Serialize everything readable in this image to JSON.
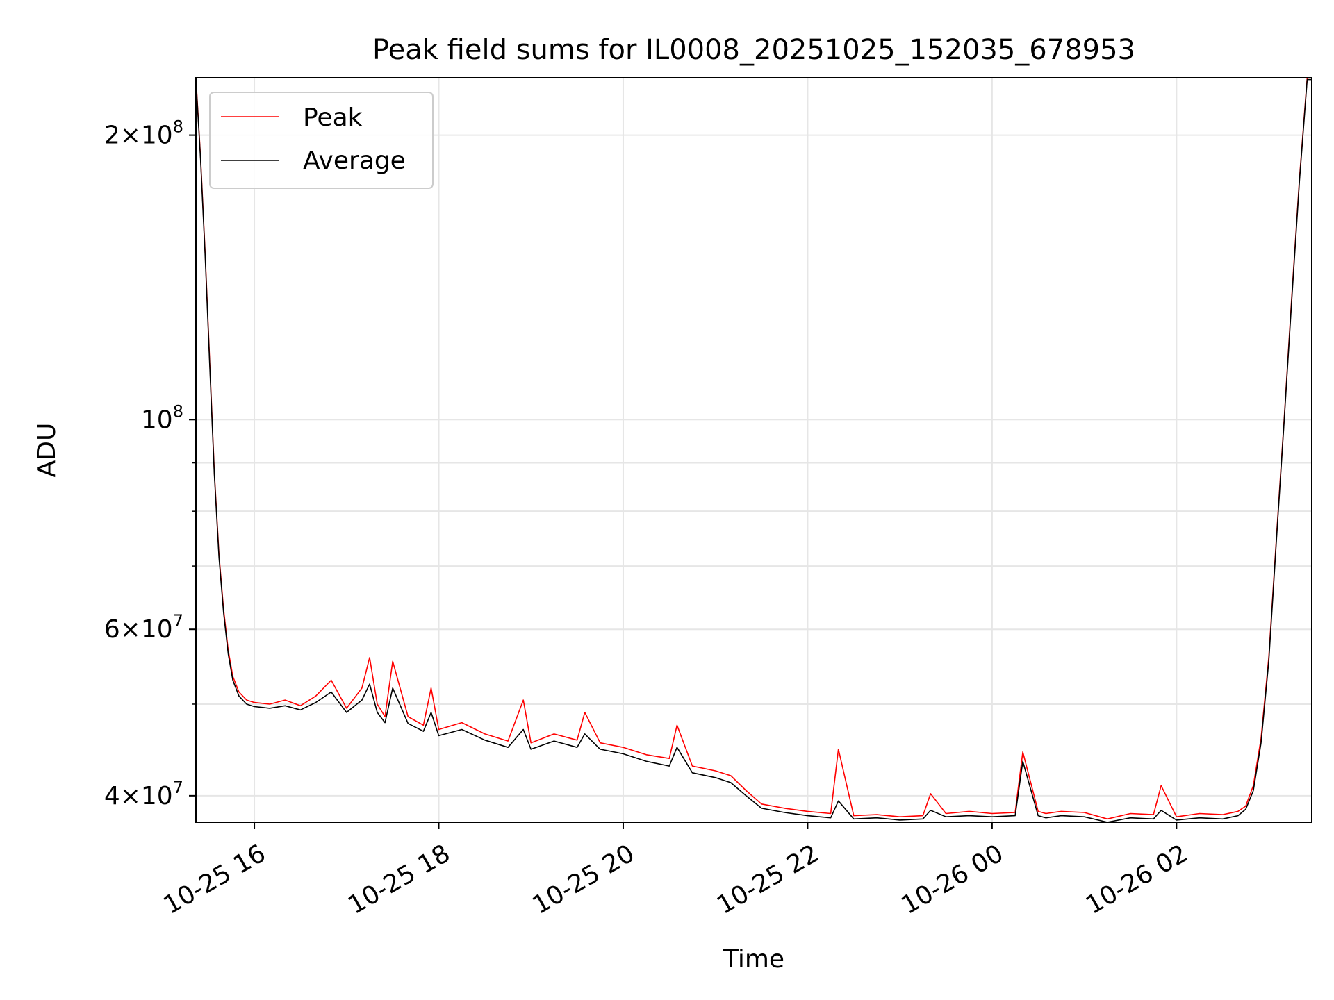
{
  "chart_data": {
    "type": "line",
    "title": "Peak field sums for IL0008_20251025_152035_678953",
    "xlabel": "Time",
    "ylabel": "ADU",
    "y_scale": "log",
    "ylim": [
      37500000,
      230000000
    ],
    "xlim": [
      "2025-10-25 15:22",
      "2025-10-26 03:28"
    ],
    "grid": true,
    "legend_position": "upper-left",
    "x_ticks": [
      {
        "value": "2025-10-25 16:00",
        "label": "10-25 16"
      },
      {
        "value": "2025-10-25 18:00",
        "label": "10-25 18"
      },
      {
        "value": "2025-10-25 20:00",
        "label": "10-25 20"
      },
      {
        "value": "2025-10-25 22:00",
        "label": "10-25 22"
      },
      {
        "value": "2025-10-26 00:00",
        "label": "10-26 00"
      },
      {
        "value": "2025-10-26 02:00",
        "label": "10-26 02"
      }
    ],
    "y_ticks": [
      {
        "value": 40000000,
        "base": "4×10",
        "exp": "7"
      },
      {
        "value": 60000000,
        "base": "6×10",
        "exp": "7"
      },
      {
        "value": 100000000,
        "base": "10",
        "exp": "8"
      },
      {
        "value": 200000000,
        "base": "2×10",
        "exp": "8"
      }
    ],
    "y_minor_ticks": [
      50000000,
      70000000,
      80000000,
      90000000
    ],
    "series": [
      {
        "name": "Peak",
        "color": "#ff0000",
        "x": [
          "2025-10-25 15:22",
          "2025-10-25 15:25",
          "2025-10-25 15:28",
          "2025-10-25 15:31",
          "2025-10-25 15:34",
          "2025-10-25 15:37",
          "2025-10-25 15:40",
          "2025-10-25 15:43",
          "2025-10-25 15:46",
          "2025-10-25 15:50",
          "2025-10-25 15:55",
          "2025-10-25 16:00",
          "2025-10-25 16:10",
          "2025-10-25 16:20",
          "2025-10-25 16:30",
          "2025-10-25 16:40",
          "2025-10-25 16:50",
          "2025-10-25 17:00",
          "2025-10-25 17:10",
          "2025-10-25 17:15",
          "2025-10-25 17:20",
          "2025-10-25 17:25",
          "2025-10-25 17:30",
          "2025-10-25 17:40",
          "2025-10-25 17:50",
          "2025-10-25 17:55",
          "2025-10-25 18:00",
          "2025-10-25 18:15",
          "2025-10-25 18:30",
          "2025-10-25 18:45",
          "2025-10-25 18:55",
          "2025-10-25 19:00",
          "2025-10-25 19:15",
          "2025-10-25 19:30",
          "2025-10-25 19:35",
          "2025-10-25 19:45",
          "2025-10-25 20:00",
          "2025-10-25 20:15",
          "2025-10-25 20:30",
          "2025-10-25 20:35",
          "2025-10-25 20:45",
          "2025-10-25 21:00",
          "2025-10-25 21:10",
          "2025-10-25 21:20",
          "2025-10-25 21:30",
          "2025-10-25 21:45",
          "2025-10-25 22:00",
          "2025-10-25 22:15",
          "2025-10-25 22:20",
          "2025-10-25 22:30",
          "2025-10-25 22:45",
          "2025-10-25 23:00",
          "2025-10-25 23:15",
          "2025-10-25 23:20",
          "2025-10-25 23:30",
          "2025-10-25 23:45",
          "2025-10-26 00:00",
          "2025-10-26 00:15",
          "2025-10-26 00:20",
          "2025-10-26 00:30",
          "2025-10-26 00:35",
          "2025-10-26 00:45",
          "2025-10-26 01:00",
          "2025-10-26 01:15",
          "2025-10-26 01:30",
          "2025-10-26 01:45",
          "2025-10-26 01:50",
          "2025-10-26 02:00",
          "2025-10-26 02:15",
          "2025-10-26 02:30",
          "2025-10-26 02:40",
          "2025-10-26 02:45",
          "2025-10-26 02:50",
          "2025-10-26 02:55",
          "2025-10-26 03:00",
          "2025-10-26 03:05",
          "2025-10-26 03:10",
          "2025-10-26 03:15",
          "2025-10-26 03:20",
          "2025-10-26 03:25",
          "2025-10-26 03:28"
        ],
        "y": [
          230000000,
          190000000,
          150000000,
          115000000,
          88000000,
          72000000,
          63000000,
          57000000,
          53500000,
          51500000,
          50500000,
          50200000,
          50000000,
          50500000,
          49800000,
          51000000,
          53000000,
          49500000,
          52000000,
          56000000,
          50000000,
          48500000,
          55500000,
          48500000,
          47500000,
          52000000,
          47000000,
          47800000,
          46500000,
          45700000,
          50500000,
          45500000,
          46500000,
          45800000,
          49000000,
          45500000,
          45000000,
          44200000,
          43800000,
          47500000,
          43000000,
          42500000,
          42000000,
          40500000,
          39200000,
          38800000,
          38500000,
          38300000,
          44800000,
          38100000,
          38200000,
          38000000,
          38100000,
          40200000,
          38300000,
          38500000,
          38300000,
          38400000,
          44500000,
          38500000,
          38300000,
          38500000,
          38400000,
          37800000,
          38300000,
          38200000,
          41000000,
          38000000,
          38300000,
          38200000,
          38500000,
          39000000,
          41000000,
          46000000,
          56000000,
          75000000,
          100000000,
          135000000,
          180000000,
          230000000,
          230000000
        ]
      },
      {
        "name": "Average",
        "color": "#000000",
        "x": [
          "2025-10-25 15:22",
          "2025-10-25 15:25",
          "2025-10-25 15:28",
          "2025-10-25 15:31",
          "2025-10-25 15:34",
          "2025-10-25 15:37",
          "2025-10-25 15:40",
          "2025-10-25 15:43",
          "2025-10-25 15:46",
          "2025-10-25 15:50",
          "2025-10-25 15:55",
          "2025-10-25 16:00",
          "2025-10-25 16:10",
          "2025-10-25 16:20",
          "2025-10-25 16:30",
          "2025-10-25 16:40",
          "2025-10-25 16:50",
          "2025-10-25 17:00",
          "2025-10-25 17:10",
          "2025-10-25 17:15",
          "2025-10-25 17:20",
          "2025-10-25 17:25",
          "2025-10-25 17:30",
          "2025-10-25 17:40",
          "2025-10-25 17:50",
          "2025-10-25 17:55",
          "2025-10-25 18:00",
          "2025-10-25 18:15",
          "2025-10-25 18:30",
          "2025-10-25 18:45",
          "2025-10-25 18:55",
          "2025-10-25 19:00",
          "2025-10-25 19:15",
          "2025-10-25 19:30",
          "2025-10-25 19:35",
          "2025-10-25 19:45",
          "2025-10-25 20:00",
          "2025-10-25 20:15",
          "2025-10-25 20:30",
          "2025-10-25 20:35",
          "2025-10-25 20:45",
          "2025-10-25 21:00",
          "2025-10-25 21:10",
          "2025-10-25 21:20",
          "2025-10-25 21:30",
          "2025-10-25 21:45",
          "2025-10-25 22:00",
          "2025-10-25 22:15",
          "2025-10-25 22:20",
          "2025-10-25 22:30",
          "2025-10-25 22:45",
          "2025-10-25 23:00",
          "2025-10-25 23:15",
          "2025-10-25 23:20",
          "2025-10-25 23:30",
          "2025-10-25 23:45",
          "2025-10-26 00:00",
          "2025-10-26 00:15",
          "2025-10-26 00:20",
          "2025-10-26 00:30",
          "2025-10-26 00:35",
          "2025-10-26 00:45",
          "2025-10-26 01:00",
          "2025-10-26 01:15",
          "2025-10-26 01:30",
          "2025-10-26 01:45",
          "2025-10-26 01:50",
          "2025-10-26 02:00",
          "2025-10-26 02:15",
          "2025-10-26 02:30",
          "2025-10-26 02:40",
          "2025-10-26 02:45",
          "2025-10-26 02:50",
          "2025-10-26 02:55",
          "2025-10-26 03:00",
          "2025-10-26 03:05",
          "2025-10-26 03:10",
          "2025-10-26 03:15",
          "2025-10-26 03:20",
          "2025-10-26 03:25",
          "2025-10-26 03:28"
        ],
        "y": [
          229000000,
          189000000,
          149000000,
          114000000,
          87500000,
          71500000,
          62500000,
          56500000,
          53000000,
          51000000,
          50000000,
          49700000,
          49500000,
          49800000,
          49300000,
          50200000,
          51500000,
          49000000,
          50500000,
          52500000,
          49000000,
          47800000,
          52000000,
          47700000,
          46800000,
          49000000,
          46300000,
          47000000,
          45800000,
          45000000,
          47000000,
          44800000,
          45700000,
          45000000,
          46500000,
          44800000,
          44300000,
          43500000,
          43000000,
          45000000,
          42300000,
          41800000,
          41300000,
          40000000,
          38800000,
          38400000,
          38100000,
          37900000,
          39500000,
          37800000,
          37900000,
          37700000,
          37800000,
          38600000,
          38000000,
          38100000,
          38000000,
          38100000,
          43500000,
          38100000,
          37900000,
          38100000,
          38000000,
          37500000,
          37900000,
          37800000,
          38600000,
          37700000,
          37900000,
          37800000,
          38100000,
          38700000,
          40500000,
          45500000,
          55500000,
          74500000,
          99500000,
          134000000,
          179000000,
          229000000,
          229000000
        ]
      }
    ]
  }
}
